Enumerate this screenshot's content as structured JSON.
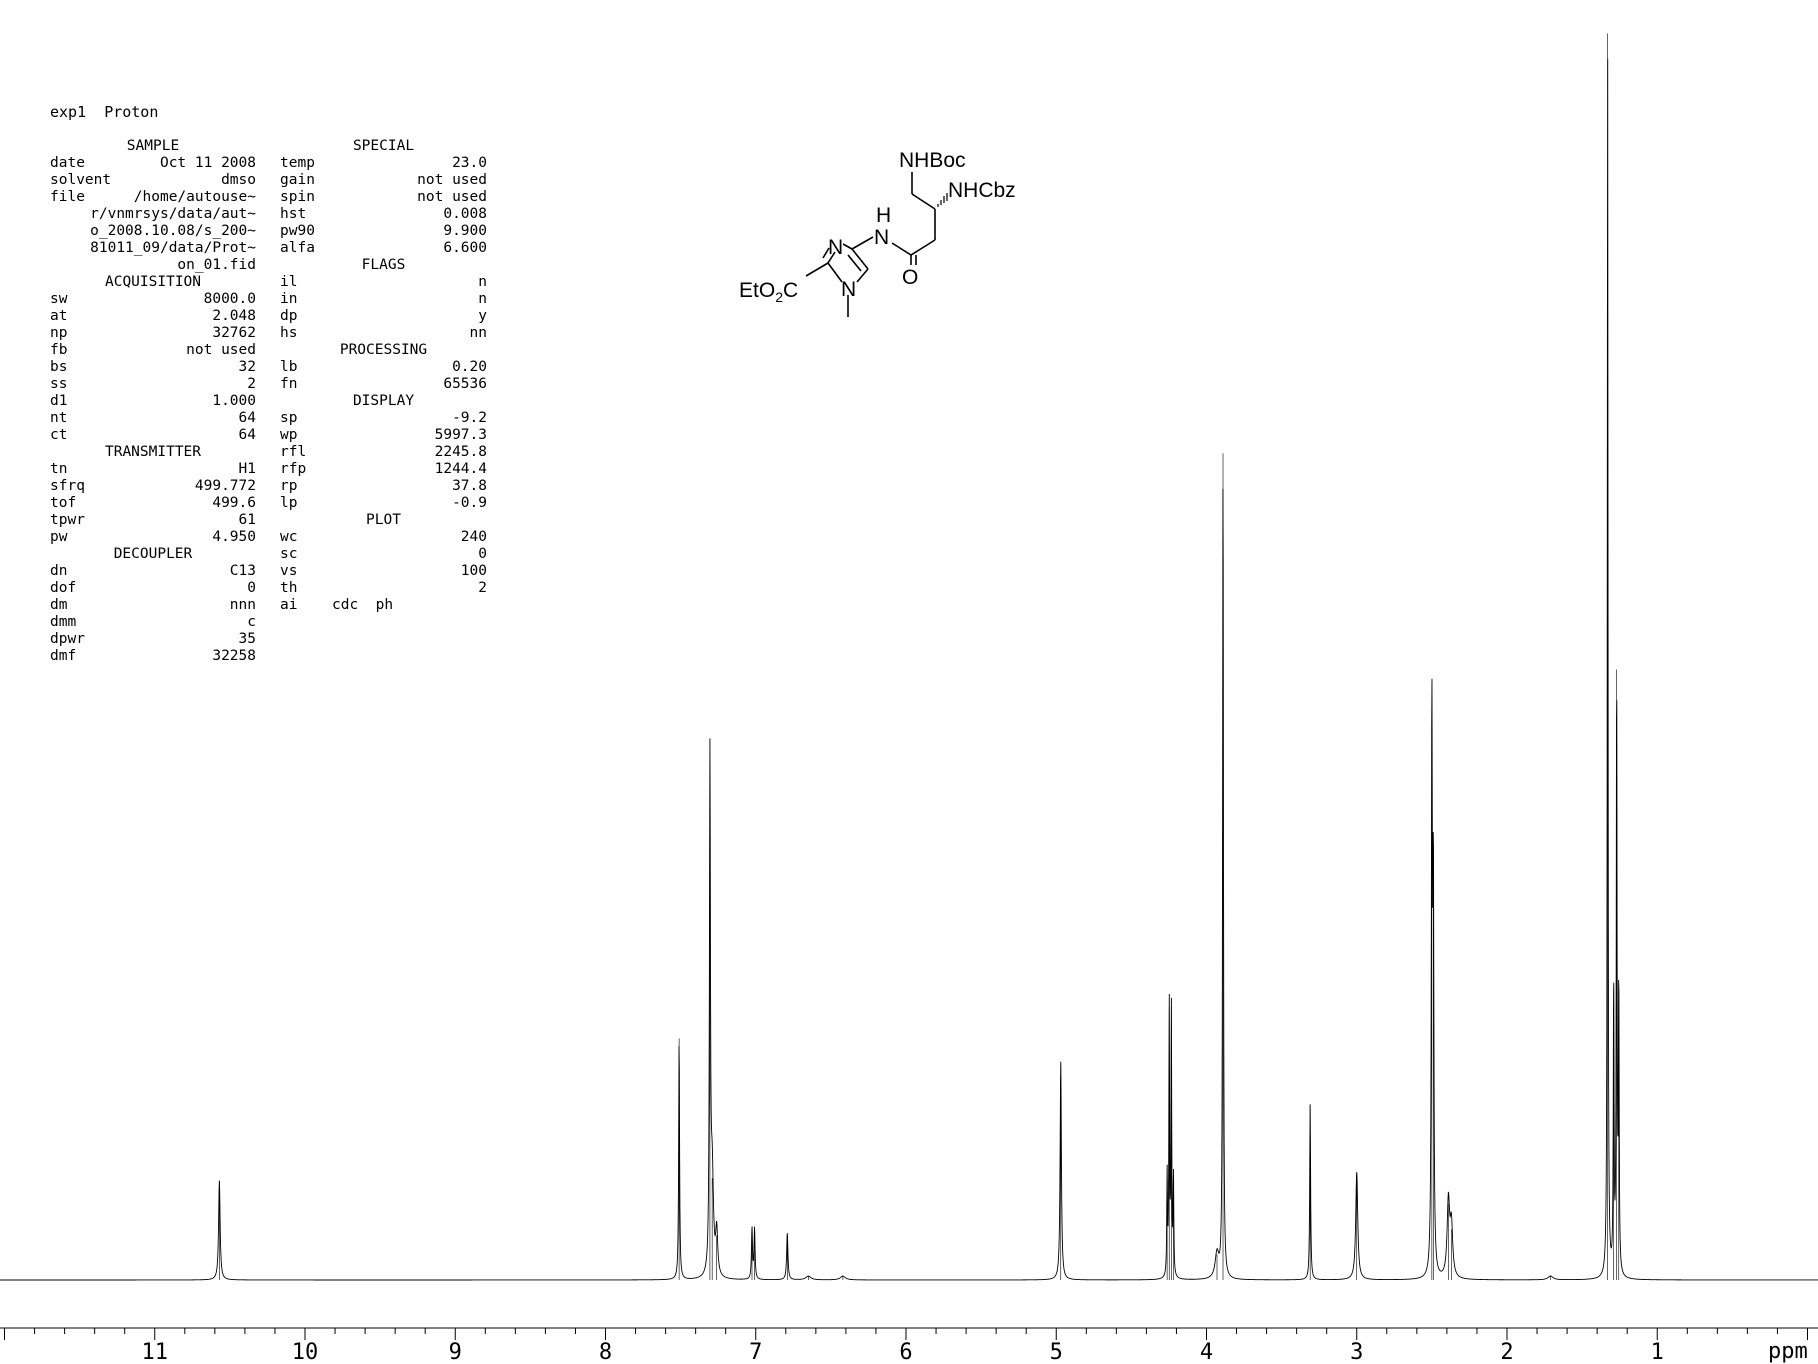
{
  "experiment": {
    "name": "exp1",
    "pulse": "Proton"
  },
  "params_col1": [
    {
      "header": "SAMPLE"
    },
    {
      "k": "date",
      "v": "Oct 11 2008"
    },
    {
      "k": "solvent",
      "v": "dmso"
    },
    {
      "k": "file",
      "v": "/home/autouse~"
    },
    {
      "k": "",
      "v": "r/vnmrsys/data/aut~"
    },
    {
      "k": "",
      "v": "o_2008.10.08/s_200~"
    },
    {
      "k": "",
      "v": "81011_09/data/Prot~"
    },
    {
      "k": "",
      "v": "on_01.fid"
    },
    {
      "header": "ACQUISITION"
    },
    {
      "k": "sw",
      "v": "8000.0"
    },
    {
      "k": "at",
      "v": "2.048"
    },
    {
      "k": "np",
      "v": "32762"
    },
    {
      "k": "fb",
      "v": "not used"
    },
    {
      "k": "bs",
      "v": "32"
    },
    {
      "k": "ss",
      "v": "2"
    },
    {
      "k": "d1",
      "v": "1.000"
    },
    {
      "k": "nt",
      "v": "64"
    },
    {
      "k": "ct",
      "v": "64"
    },
    {
      "header": "TRANSMITTER"
    },
    {
      "k": "tn",
      "v": "H1"
    },
    {
      "k": "sfrq",
      "v": "499.772"
    },
    {
      "k": "tof",
      "v": "499.6"
    },
    {
      "k": "tpwr",
      "v": "61"
    },
    {
      "k": "pw",
      "v": "4.950"
    },
    {
      "header": "DECOUPLER"
    },
    {
      "k": "dn",
      "v": "C13"
    },
    {
      "k": "dof",
      "v": "0"
    },
    {
      "k": "dm",
      "v": "nnn"
    },
    {
      "k": "dmm",
      "v": "c"
    },
    {
      "k": "dpwr",
      "v": "35"
    },
    {
      "k": "dmf",
      "v": "32258"
    }
  ],
  "params_col2": [
    {
      "header": "SPECIAL"
    },
    {
      "k": "temp",
      "v": "23.0"
    },
    {
      "k": "gain",
      "v": "not used"
    },
    {
      "k": "spin",
      "v": "not used"
    },
    {
      "k": "hst",
      "v": "0.008"
    },
    {
      "k": "pw90",
      "v": "9.900"
    },
    {
      "k": "alfa",
      "v": "6.600"
    },
    {
      "header": "FLAGS"
    },
    {
      "k": "il",
      "v": "n"
    },
    {
      "k": "in",
      "v": "n"
    },
    {
      "k": "dp",
      "v": "y"
    },
    {
      "k": "hs",
      "v": "nn"
    },
    {
      "header": "PROCESSING"
    },
    {
      "k": "lb",
      "v": "0.20"
    },
    {
      "k": "fn",
      "v": "65536"
    },
    {
      "header": "DISPLAY"
    },
    {
      "k": "sp",
      "v": "-9.2"
    },
    {
      "k": "wp",
      "v": "5997.3"
    },
    {
      "k": "rfl",
      "v": "2245.8"
    },
    {
      "k": "rfp",
      "v": "1244.4"
    },
    {
      "k": "rp",
      "v": "37.8"
    },
    {
      "k": "lp",
      "v": "-0.9"
    },
    {
      "header": "PLOT"
    },
    {
      "k": "wc",
      "v": "240"
    },
    {
      "k": "sc",
      "v": "0"
    },
    {
      "k": "vs",
      "v": "100"
    },
    {
      "k": "th",
      "v": "2"
    },
    {
      "k": "ai",
      "v": "cdc  ph",
      "left": true
    }
  ],
  "structure": {
    "labels": {
      "nhboc": "NHBoc",
      "nhcbz": "NHCbz",
      "h": "H",
      "n_amide": "N",
      "n_ring_top": "N",
      "n_ring_bottom": "N",
      "o": "O",
      "eto2c_a": "EtO",
      "eto2c_sub": "2",
      "eto2c_b": "C"
    }
  },
  "chart_data": {
    "type": "line",
    "xlabel": "ppm",
    "x_reversed": true,
    "xlim": [
      12.03,
      -0.07
    ],
    "ylim": [
      0,
      100
    ],
    "xticks": [
      11,
      10,
      9,
      8,
      7,
      6,
      5,
      4,
      3,
      2,
      1
    ],
    "minor_tick_step": 0.2,
    "peaks": [
      {
        "ppm": 10.57,
        "height": 7.8,
        "width": 0.006
      },
      {
        "ppm": 7.51,
        "height": 19.0,
        "width": 0.0035
      },
      {
        "ppm": 7.305,
        "height": 40.0,
        "width": 0.004
      },
      {
        "ppm": 7.29,
        "height": 8.0,
        "width": 0.01
      },
      {
        "ppm": 7.26,
        "height": 3.5,
        "width": 0.008
      },
      {
        "ppm": 7.025,
        "height": 4.0,
        "width": 0.004
      },
      {
        "ppm": 7.008,
        "height": 4.0,
        "width": 0.004
      },
      {
        "ppm": 6.79,
        "height": 3.7,
        "width": 0.005
      },
      {
        "ppm": 6.65,
        "height": 0.3,
        "width": 0.02
      },
      {
        "ppm": 6.42,
        "height": 0.3,
        "width": 0.02
      },
      {
        "ppm": 4.97,
        "height": 17.2,
        "width": 0.005
      },
      {
        "ppm": 4.262,
        "height": 8.0,
        "width": 0.0028
      },
      {
        "ppm": 4.248,
        "height": 21.5,
        "width": 0.0028
      },
      {
        "ppm": 4.234,
        "height": 21.5,
        "width": 0.0028
      },
      {
        "ppm": 4.22,
        "height": 8.0,
        "width": 0.0028
      },
      {
        "ppm": 3.93,
        "height": 2.0,
        "width": 0.015
      },
      {
        "ppm": 3.89,
        "height": 65.0,
        "width": 0.0033
      },
      {
        "ppm": 3.31,
        "height": 13.8,
        "width": 0.0035
      },
      {
        "ppm": 3.0,
        "height": 8.5,
        "width": 0.008
      },
      {
        "ppm": 2.5,
        "height": 44.0,
        "width": 0.004
      },
      {
        "ppm": 2.49,
        "height": 30.0,
        "width": 0.004
      },
      {
        "ppm": 2.39,
        "height": 6.0,
        "width": 0.01
      },
      {
        "ppm": 2.37,
        "height": 4.0,
        "width": 0.01
      },
      {
        "ppm": 1.71,
        "height": 0.3,
        "width": 0.02
      },
      {
        "ppm": 1.33,
        "height": 98.0,
        "width": 0.0028
      },
      {
        "ppm": 1.29,
        "height": 23.0,
        "width": 0.003
      },
      {
        "ppm": 1.27,
        "height": 48.0,
        "width": 0.003
      },
      {
        "ppm": 1.256,
        "height": 23.0,
        "width": 0.003
      }
    ]
  }
}
